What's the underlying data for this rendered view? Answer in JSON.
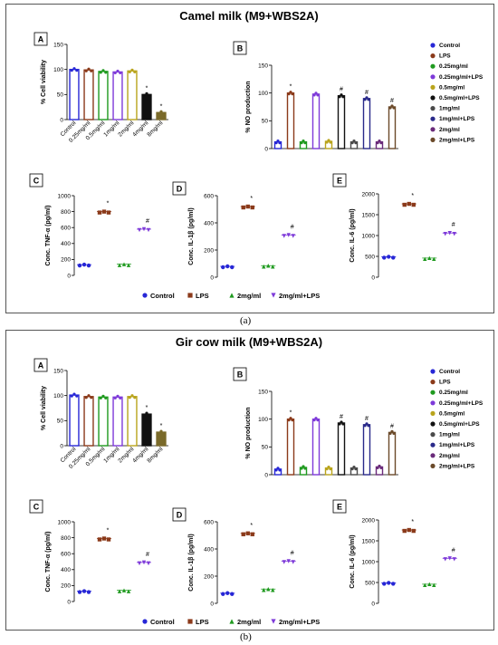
{
  "figure": {
    "caption_a": "(a)",
    "caption_b": "(b)",
    "colors": {
      "control": "#2727d6",
      "lps": "#8b3a1a",
      "c025": "#1f9a1f",
      "c025lps": "#7e3ad9",
      "c05": "#b9a41c",
      "c05lps": "#111111",
      "c1": "#4a4a4a",
      "c1lps": "#2a2a8a",
      "c2": "#6a2b7a",
      "c2lps": "#6b4a2a"
    }
  },
  "chart_data": [
    {
      "id": "a",
      "title": "Camel milk (M9+WBS2A)",
      "panels": [
        {
          "letter": "A",
          "type": "bar",
          "ylabel": "% Cell viability",
          "ylim": [
            0,
            150
          ],
          "yticks": [
            "0",
            "50",
            "100",
            "150"
          ],
          "categories": [
            "Control",
            "0.25mg/ml",
            "0.5mg/ml",
            "1mg/ml",
            "2mg/ml",
            "4mg/ml",
            "8mg/ml"
          ],
          "values": [
            100,
            99,
            96,
            95,
            97,
            50,
            14
          ],
          "annotations": [
            "",
            "",
            "",
            "",
            "",
            "*",
            "*"
          ],
          "colors": [
            "#2727d6",
            "#8b3a1a",
            "#1f9a1f",
            "#7e3ad9",
            "#b9a41c",
            "#111111",
            "#7a6a2a"
          ]
        },
        {
          "letter": "B",
          "type": "bar",
          "ylabel": "% NO production",
          "ylim": [
            0,
            150
          ],
          "yticks": [
            "0",
            "50",
            "100",
            "150"
          ],
          "categories": [
            "Control",
            "LPS",
            "0.25mg/ml",
            "0.25mg/ml+LPS",
            "0.5mg/ml",
            "0.5mg/ml+LPS",
            "1mg/ml",
            "1mg/ml+LPS",
            "2mg/ml",
            "2mg/ml+LPS"
          ],
          "values": [
            12,
            100,
            12,
            98,
            13,
            95,
            12,
            90,
            12,
            75
          ],
          "annotations": [
            "",
            "*",
            "",
            "",
            "",
            "#",
            "",
            "#",
            "",
            "#"
          ],
          "legend": [
            "Control",
            "LPS",
            "0.25mg/ml",
            "0.25mg/ml+LPS",
            "0.5mg/ml",
            "0.5mg/ml+LPS",
            "1mg/ml",
            "1mg/ml+LPS",
            "2mg/ml",
            "2mg/ml+LPS"
          ]
        },
        {
          "letter": "C",
          "type": "scatter",
          "ylabel": "Conc. TNF-α (pg/ml)",
          "ylim": [
            0,
            1000
          ],
          "yticks": [
            "0",
            "200",
            "400",
            "600",
            "800",
            "1000"
          ],
          "groups": [
            "Control",
            "LPS",
            "2mg/ml",
            "2mg/ml+LPS"
          ],
          "values": [
            135,
            800,
            140,
            580
          ],
          "annotations": [
            "",
            "*",
            "",
            "#"
          ]
        },
        {
          "letter": "D",
          "type": "scatter",
          "ylabel": "Conc. IL-1β (pg/ml)",
          "ylim": [
            0,
            600
          ],
          "yticks": [
            "0",
            "200",
            "400",
            "600"
          ],
          "groups": [
            "Control",
            "LPS",
            "2mg/ml",
            "2mg/ml+LPS"
          ],
          "values": [
            80,
            520,
            85,
            310
          ],
          "annotations": [
            "",
            "*",
            "",
            "#"
          ]
        },
        {
          "letter": "E",
          "type": "scatter",
          "ylabel": "Conc. IL-6 (pg/ml)",
          "ylim": [
            0,
            2000
          ],
          "yticks": [
            "0",
            "500",
            "1000",
            "1500",
            "2000"
          ],
          "groups": [
            "Control",
            "LPS",
            "2mg/ml",
            "2mg/ml+LPS"
          ],
          "values": [
            490,
            1760,
            460,
            1060
          ],
          "annotations": [
            "",
            "*",
            "",
            "#"
          ]
        }
      ],
      "legend_bottom": [
        "Control",
        "LPS",
        "2mg/ml",
        "2mg/ml+LPS"
      ]
    },
    {
      "id": "b",
      "title": "Gir cow milk (M9+WBS2A)",
      "panels": [
        {
          "letter": "A",
          "type": "bar",
          "ylabel": "% Cell viability",
          "ylim": [
            0,
            150
          ],
          "yticks": [
            "0",
            "50",
            "100",
            "150"
          ],
          "categories": [
            "Control",
            "0.25mg/ml",
            "0.5mg/ml",
            "1mg/ml",
            "2mg/ml",
            "4mg/ml",
            "8mg/ml"
          ],
          "values": [
            101,
            98,
            97,
            97,
            98,
            63,
            27
          ],
          "annotations": [
            "",
            "",
            "",
            "",
            "",
            "*",
            "*"
          ],
          "colors": [
            "#2727d6",
            "#8b3a1a",
            "#1f9a1f",
            "#7e3ad9",
            "#b9a41c",
            "#111111",
            "#7a6a2a"
          ]
        },
        {
          "letter": "B",
          "type": "bar",
          "ylabel": "% NO production",
          "ylim": [
            0,
            150
          ],
          "yticks": [
            "0",
            "50",
            "100",
            "150"
          ],
          "categories": [
            "Control",
            "LPS",
            "0.25mg/ml",
            "0.25mg/ml+LPS",
            "0.5mg/ml",
            "0.5mg/ml+LPS",
            "1mg/ml",
            "1mg/ml+LPS",
            "2mg/ml",
            "2mg/ml+LPS"
          ],
          "values": [
            10,
            100,
            13,
            100,
            12,
            93,
            12,
            90,
            14,
            76
          ],
          "annotations": [
            "",
            "*",
            "",
            "",
            "",
            "#",
            "",
            "#",
            "",
            "#"
          ],
          "legend": [
            "Control",
            "LPS",
            "0.25mg/ml",
            "0.25mg/ml+LPS",
            "0.5mg/ml",
            "0.5mg/ml+LPS",
            "1mg/ml",
            "1mg/ml+LPS",
            "2mg/ml",
            "2mg/ml+LPS"
          ]
        },
        {
          "letter": "C",
          "type": "scatter",
          "ylabel": "Conc. TNF-α (pg/ml)",
          "ylim": [
            0,
            1000
          ],
          "yticks": [
            "0",
            "200",
            "400",
            "600",
            "800",
            "1000"
          ],
          "groups": [
            "Control",
            "LPS",
            "2mg/ml",
            "2mg/ml+LPS"
          ],
          "values": [
            130,
            790,
            140,
            490
          ],
          "annotations": [
            "",
            "*",
            "",
            "#"
          ]
        },
        {
          "letter": "D",
          "type": "scatter",
          "ylabel": "Conc. IL-1β (pg/ml)",
          "ylim": [
            0,
            600
          ],
          "yticks": [
            "0",
            "200",
            "400",
            "600"
          ],
          "groups": [
            "Control",
            "LPS",
            "2mg/ml",
            "2mg/ml+LPS"
          ],
          "values": [
            75,
            515,
            105,
            310
          ],
          "annotations": [
            "",
            "*",
            "",
            "#"
          ]
        },
        {
          "letter": "E",
          "type": "scatter",
          "ylabel": "Conc. IL-6 (pg/ml)",
          "ylim": [
            0,
            2000
          ],
          "yticks": [
            "0",
            "500",
            "1000",
            "1500",
            "2000"
          ],
          "groups": [
            "Control",
            "LPS",
            "2mg/ml",
            "2mg/ml+LPS"
          ],
          "values": [
            490,
            1760,
            460,
            1080
          ],
          "annotations": [
            "",
            "*",
            "",
            "#"
          ]
        }
      ],
      "legend_bottom": [
        "Control",
        "LPS",
        "2mg/ml",
        "2mg/ml+LPS"
      ]
    }
  ]
}
